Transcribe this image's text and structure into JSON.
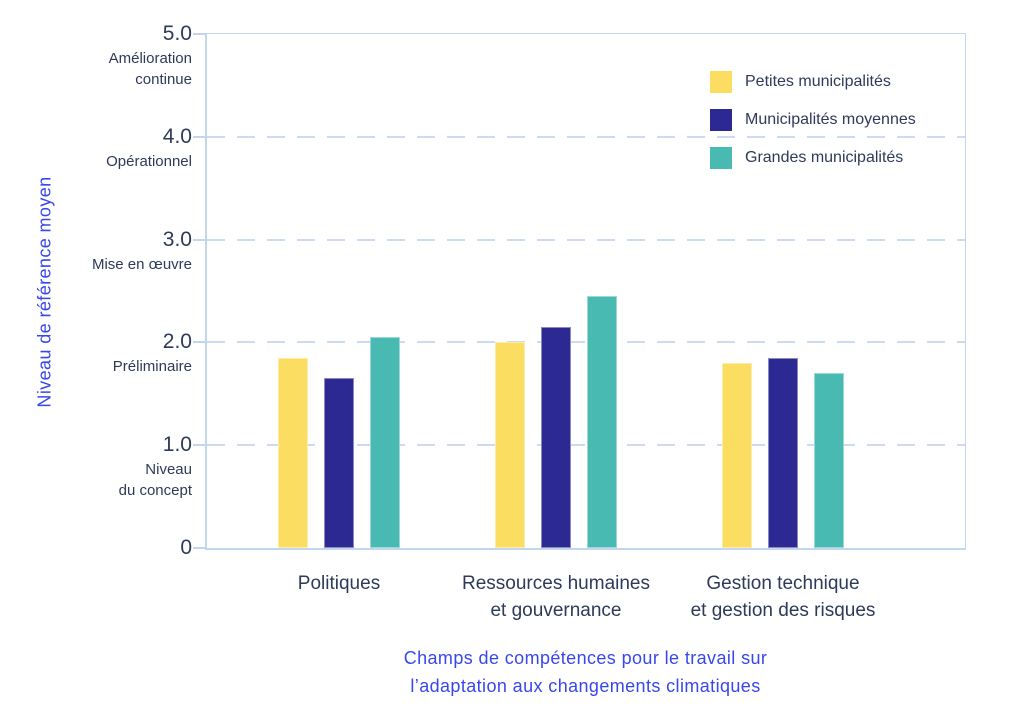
{
  "colors": {
    "accent_blue": "#3847EC",
    "text_navy": "#2E3A59",
    "axis_line": "#C3D6EF",
    "grid_line": "#CCDAF3",
    "series_yellow": "#FBDD62",
    "series_indigo": "#2C2A92",
    "series_teal": "#48BAB2"
  },
  "y_axis": {
    "title": "Niveau de référence moyen",
    "ticks": [
      {
        "value": 5,
        "label": "5.0",
        "level_lines": [
          "Amélioration",
          "continue"
        ]
      },
      {
        "value": 4,
        "label": "4.0",
        "level_lines": [
          "Opérationnel"
        ]
      },
      {
        "value": 3,
        "label": "3.0",
        "level_lines": [
          "Mise en œuvre"
        ]
      },
      {
        "value": 2,
        "label": "2.0",
        "level_lines": [
          "Préliminaire"
        ]
      },
      {
        "value": 1,
        "label": "1.0",
        "level_lines": [
          "Niveau",
          "du concept"
        ]
      },
      {
        "value": 0,
        "label": "0",
        "level_lines": []
      }
    ]
  },
  "x_axis": {
    "title_lines": [
      "Champs de compétences pour le travail sur",
      "l’adaptation aux changements climatiques"
    ]
  },
  "legend": [
    {
      "label": "Petites municipalités",
      "color": "#FBDD62"
    },
    {
      "label": "Municipalités moyennes",
      "color": "#2C2A92"
    },
    {
      "label": "Grandes municipalités",
      "color": "#48BAB2"
    }
  ],
  "chart_data": {
    "type": "bar",
    "title": "",
    "xlabel": "Champs de compétences pour le travail sur l’adaptation aux changements climatiques",
    "ylabel": "Niveau de référence moyen",
    "categories_lines": [
      [
        "Politiques"
      ],
      [
        "Ressources humaines",
        "et gouvernance"
      ],
      [
        "Gestion technique",
        "et gestion des risques"
      ]
    ],
    "series": [
      {
        "name": "Petites municipalités",
        "color": "#FBDD62",
        "values": [
          1.85,
          2.0,
          1.8
        ]
      },
      {
        "name": "Municipalités moyennes",
        "color": "#2C2A92",
        "values": [
          1.65,
          2.15,
          1.85
        ]
      },
      {
        "name": "Grandes municipalités",
        "color": "#48BAB2",
        "values": [
          2.05,
          2.45,
          1.7
        ]
      }
    ],
    "ylim": [
      0,
      5
    ],
    "ytick_values": [
      0,
      1,
      2,
      3,
      4,
      5
    ],
    "ytick_level_names": [
      "",
      "Niveau du concept",
      "Préliminaire",
      "Mise en œuvre",
      "Opérationnel",
      "Amélioration continue"
    ],
    "grid": "horizontal-dashed",
    "legend_position": "top-right-inside"
  }
}
